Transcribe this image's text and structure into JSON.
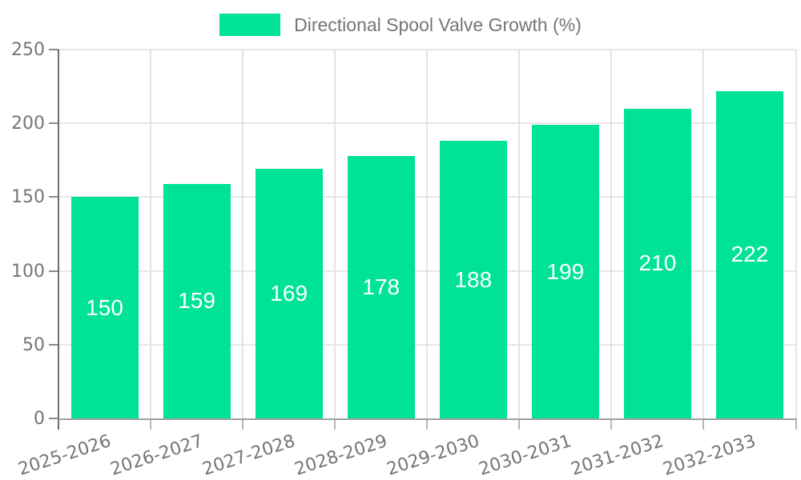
{
  "colors": {
    "bar": "#00E396",
    "axis_text": "#757575",
    "value_label": "#ffffff"
  },
  "legend": {
    "label": "Directional Spool Valve Growth (%)"
  },
  "chart_data": {
    "type": "bar",
    "title": "Directional Spool Valve Growth (%)",
    "categories": [
      "2025-2026",
      "2026-2027",
      "2027-2028",
      "2028-2029",
      "2029-2030",
      "2030-2031",
      "2031-2032",
      "2032-2033"
    ],
    "series": [
      {
        "name": "Directional Spool Valve Growth (%)",
        "values": [
          150,
          159,
          169,
          178,
          188,
          199,
          210,
          222
        ]
      }
    ],
    "values": [
      150,
      159,
      169,
      178,
      188,
      199,
      210,
      222
    ],
    "bar_labels": [
      150,
      159,
      169,
      178,
      188,
      199,
      210,
      222
    ],
    "xlabel": "",
    "ylabel": "",
    "ylim": [
      0,
      250
    ],
    "yticks": [
      0,
      50,
      100,
      150,
      200,
      250
    ],
    "grid": "on",
    "legend_position": "top-center"
  }
}
